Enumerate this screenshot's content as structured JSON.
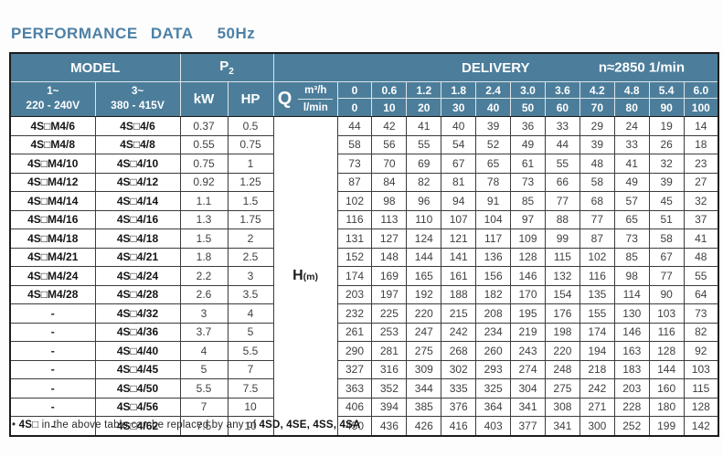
{
  "title": {
    "main": "PERFORMANCE DATA",
    "freq": "50Hz"
  },
  "colors": {
    "header_bg": "#4c7e9b",
    "title": "#4d80a6",
    "body_text": "#3f3f3f",
    "border_dark": "#1c1c1c"
  },
  "table": {
    "header": {
      "model_label": "MODEL",
      "p2": {
        "base": "P",
        "sub": "2"
      },
      "delivery_label": "DELIVERY",
      "speed_label": "n≈2850 1/min",
      "phase1": {
        "line1": "1~",
        "line2": "220 - 240V"
      },
      "phase3": {
        "line1": "3~",
        "line2": "380 - 415V"
      },
      "kw_label": "kW",
      "hp_label": "HP",
      "q_label": "Q",
      "q_unit_top": "m³/h",
      "q_unit_bottom": "l/min",
      "flow_m3h": [
        "0",
        "0.6",
        "1.2",
        "1.8",
        "2.4",
        "3.0",
        "3.6",
        "4.2",
        "4.8",
        "5.4",
        "6.0"
      ],
      "flow_lmin": [
        "0",
        "10",
        "20",
        "30",
        "40",
        "50",
        "60",
        "70",
        "80",
        "90",
        "100"
      ]
    },
    "h_label": {
      "letter": "H",
      "unit": "(m)"
    },
    "rows": [
      {
        "model1": "4S□M4/6",
        "model2": "4S□4/6",
        "kw": "0.37",
        "hp": "0.5",
        "values": [
          44,
          42,
          41,
          40,
          39,
          36,
          33,
          29,
          24,
          19,
          14
        ]
      },
      {
        "model1": "4S□M4/8",
        "model2": "4S□4/8",
        "kw": "0.55",
        "hp": "0.75",
        "values": [
          58,
          56,
          55,
          54,
          52,
          49,
          44,
          39,
          33,
          26,
          18
        ]
      },
      {
        "model1": "4S□M4/10",
        "model2": "4S□4/10",
        "kw": "0.75",
        "hp": "1",
        "values": [
          73,
          70,
          69,
          67,
          65,
          61,
          55,
          48,
          41,
          32,
          23
        ]
      },
      {
        "model1": "4S□M4/12",
        "model2": "4S□4/12",
        "kw": "0.92",
        "hp": "1.25",
        "values": [
          87,
          84,
          82,
          81,
          78,
          73,
          66,
          58,
          49,
          39,
          27
        ]
      },
      {
        "model1": "4S□M4/14",
        "model2": "4S□4/14",
        "kw": "1.1",
        "hp": "1.5",
        "values": [
          102,
          98,
          96,
          94,
          91,
          85,
          77,
          68,
          57,
          45,
          32
        ]
      },
      {
        "model1": "4S□M4/16",
        "model2": "4S□4/16",
        "kw": "1.3",
        "hp": "1.75",
        "values": [
          116,
          113,
          110,
          107,
          104,
          97,
          88,
          77,
          65,
          51,
          37
        ]
      },
      {
        "model1": "4S□M4/18",
        "model2": "4S□4/18",
        "kw": "1.5",
        "hp": "2",
        "values": [
          131,
          127,
          124,
          121,
          117,
          109,
          99,
          87,
          73,
          58,
          41
        ]
      },
      {
        "model1": "4S□M4/21",
        "model2": "4S□4/21",
        "kw": "1.8",
        "hp": "2.5",
        "values": [
          152,
          148,
          144,
          141,
          136,
          128,
          115,
          102,
          85,
          67,
          48
        ]
      },
      {
        "model1": "4S□M4/24",
        "model2": "4S□4/24",
        "kw": "2.2",
        "hp": "3",
        "values": [
          174,
          169,
          165,
          161,
          156,
          146,
          132,
          116,
          98,
          77,
          55
        ]
      },
      {
        "model1": "4S□M4/28",
        "model2": "4S□4/28",
        "kw": "2.6",
        "hp": "3.5",
        "values": [
          203,
          197,
          192,
          188,
          182,
          170,
          154,
          135,
          114,
          90,
          64
        ]
      },
      {
        "model1": "-",
        "model2": "4S□4/32",
        "kw": "3",
        "hp": "4",
        "values": [
          232,
          225,
          220,
          215,
          208,
          195,
          176,
          155,
          130,
          103,
          73
        ]
      },
      {
        "model1": "-",
        "model2": "4S□4/36",
        "kw": "3.7",
        "hp": "5",
        "values": [
          261,
          253,
          247,
          242,
          234,
          219,
          198,
          174,
          146,
          116,
          82
        ]
      },
      {
        "model1": "-",
        "model2": "4S□4/40",
        "kw": "4",
        "hp": "5.5",
        "values": [
          290,
          281,
          275,
          268,
          260,
          243,
          220,
          194,
          163,
          128,
          92
        ]
      },
      {
        "model1": "-",
        "model2": "4S□4/45",
        "kw": "5",
        "hp": "7",
        "values": [
          327,
          316,
          309,
          302,
          293,
          274,
          248,
          218,
          183,
          144,
          103
        ]
      },
      {
        "model1": "-",
        "model2": "4S□4/50",
        "kw": "5.5",
        "hp": "7.5",
        "values": [
          363,
          352,
          344,
          335,
          325,
          304,
          275,
          242,
          203,
          160,
          115
        ]
      },
      {
        "model1": "-",
        "model2": "4S□4/56",
        "kw": "7",
        "hp": "10",
        "values": [
          406,
          394,
          385,
          376,
          364,
          341,
          308,
          271,
          228,
          180,
          128
        ]
      },
      {
        "model1": "-",
        "model2": "4S□4/62",
        "kw": "7.5",
        "hp": "10",
        "values": [
          450,
          436,
          426,
          416,
          403,
          377,
          341,
          300,
          252,
          199,
          142
        ]
      }
    ],
    "footnote": {
      "bullet": "•",
      "bold1": "4S□",
      "text": " in the above table can be replaced by any of ",
      "bold2": "4SD, 4SE, 4SS, 4SA"
    }
  }
}
